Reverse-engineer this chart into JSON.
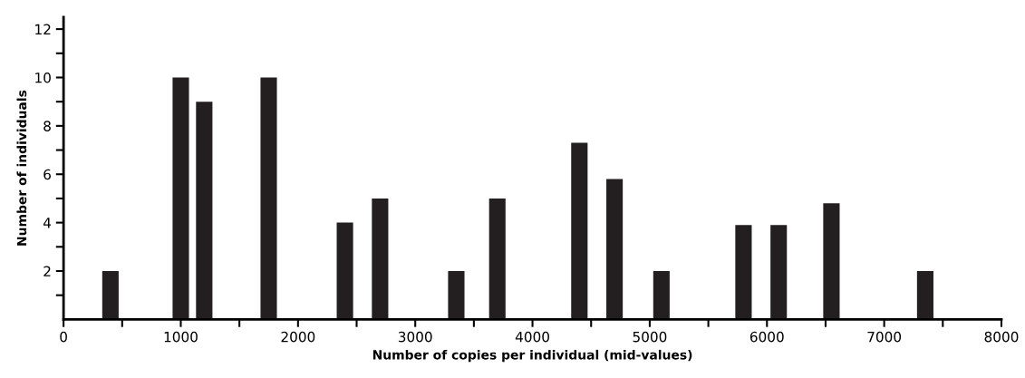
{
  "chart_data": {
    "type": "bar",
    "xlabel": "Number of copies per individual (mid-values)",
    "ylabel": "Number of individuals",
    "x": [
      400,
      1000,
      1200,
      1750,
      2400,
      2700,
      3350,
      3700,
      4400,
      4700,
      5100,
      5800,
      6100,
      6550,
      7350
    ],
    "series": [
      {
        "color": "#231f20",
        "values": [
          2,
          10,
          9,
          10,
          4,
          5,
          2,
          5,
          7.3,
          5.8,
          2,
          3.9,
          3.9,
          4.8,
          2
        ]
      }
    ],
    "xlim": [
      0,
      8000
    ],
    "xticks": [
      0,
      {
        "value": 500,
        "label": null
      },
      1000,
      {
        "value": 1500,
        "label": null
      },
      2000,
      {
        "value": 2500,
        "label": null
      },
      3000,
      {
        "value": 3500,
        "label": null
      },
      4000,
      {
        "value": 4500,
        "label": null
      },
      5000,
      {
        "value": 5500,
        "label": null
      },
      6000,
      {
        "value": 6500,
        "label": null
      },
      7000,
      {
        "value": 7500,
        "label": null
      },
      8000
    ],
    "ylim": [
      0,
      12.5
    ],
    "yticks": [
      {
        "value": 1,
        "label": null
      },
      2,
      {
        "value": 3,
        "label": null
      },
      4,
      {
        "value": 5,
        "label": null
      },
      6,
      {
        "value": 7,
        "label": null
      },
      8,
      {
        "value": 9,
        "label": null
      },
      10,
      {
        "value": 11,
        "label": null
      },
      12
    ],
    "grid": false,
    "legend": false
  }
}
